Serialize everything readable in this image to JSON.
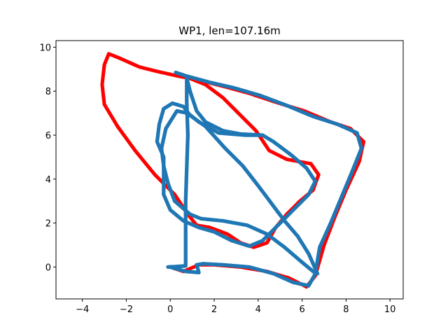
{
  "chart_data": {
    "type": "scatter",
    "title": "WP1, len=107.16m",
    "xlabel": "",
    "ylabel": "",
    "xlim": [
      -5.2,
      10.6
    ],
    "ylim": [
      -1.45,
      10.3
    ],
    "xticks": [
      -4,
      -2,
      0,
      2,
      4,
      6,
      8,
      10
    ],
    "yticks": [
      0,
      2,
      4,
      6,
      8,
      10
    ],
    "grid": false,
    "series": [
      {
        "color": "#ff0000",
        "marker_size": 2.6,
        "points": [
          [
            0.6,
            8.7
          ],
          [
            1.6,
            8.3
          ],
          [
            2.4,
            7.7
          ],
          [
            3.2,
            6.9
          ],
          [
            3.9,
            6.2
          ],
          [
            4.5,
            5.3
          ],
          [
            5.3,
            4.9
          ],
          [
            6.4,
            4.7
          ],
          [
            6.75,
            4.2
          ],
          [
            6.5,
            3.5
          ],
          [
            5.9,
            3.0
          ],
          [
            5.3,
            2.4
          ],
          [
            4.8,
            1.8
          ],
          [
            4.4,
            1.1
          ],
          [
            3.8,
            0.9
          ],
          [
            3.2,
            1.1
          ],
          [
            2.6,
            1.5
          ],
          [
            1.8,
            1.8
          ],
          [
            1.2,
            1.9
          ],
          [
            0.8,
            2.4
          ],
          [
            0.2,
            3.3
          ],
          [
            -0.7,
            4.2
          ],
          [
            -1.6,
            5.3
          ],
          [
            -2.4,
            6.4
          ],
          [
            -3.0,
            7.4
          ],
          [
            -3.1,
            8.3
          ],
          [
            -3.0,
            9.2
          ],
          [
            -2.8,
            9.7
          ],
          [
            -2.3,
            9.5
          ],
          [
            -1.4,
            9.1
          ],
          [
            -0.6,
            8.9
          ],
          [
            0.3,
            8.7
          ],
          [
            1.3,
            8.5
          ],
          [
            2.5,
            8.2
          ],
          [
            3.6,
            7.9
          ],
          [
            4.8,
            7.5
          ],
          [
            6.1,
            7.1
          ],
          [
            7.3,
            6.6
          ],
          [
            8.2,
            6.3
          ],
          [
            8.8,
            5.7
          ],
          [
            8.6,
            4.8
          ],
          [
            8.0,
            3.5
          ],
          [
            7.5,
            2.3
          ],
          [
            7.0,
            1.0
          ],
          [
            6.6,
            -0.4
          ],
          [
            6.2,
            -0.9
          ],
          [
            5.4,
            -0.5
          ],
          [
            4.4,
            -0.2
          ],
          [
            3.2,
            0.0
          ],
          [
            2.0,
            0.1
          ],
          [
            1.3,
            0.1
          ],
          [
            0.6,
            -0.2
          ],
          [
            0.0,
            0.0
          ],
          [
            -0.1,
            0.0
          ]
        ]
      },
      {
        "color": "#1f77b4",
        "marker_size": 2.7,
        "points": [
          [
            0.25,
            8.85
          ],
          [
            0.7,
            8.7
          ],
          [
            1.8,
            8.4
          ],
          [
            2.9,
            8.15
          ],
          [
            4.1,
            7.8
          ],
          [
            5.3,
            7.35
          ],
          [
            6.5,
            6.85
          ],
          [
            7.6,
            6.5
          ],
          [
            8.5,
            6.1
          ],
          [
            8.7,
            5.4
          ],
          [
            8.3,
            4.4
          ],
          [
            7.8,
            3.2
          ],
          [
            7.3,
            2.0
          ],
          [
            6.8,
            0.9
          ],
          [
            6.6,
            -0.3
          ],
          [
            6.3,
            -0.85
          ],
          [
            5.6,
            -0.7
          ],
          [
            4.7,
            -0.3
          ],
          [
            3.6,
            0.0
          ],
          [
            2.4,
            0.1
          ],
          [
            1.5,
            0.15
          ],
          [
            1.2,
            0.1
          ],
          [
            1.3,
            -0.25
          ],
          [
            0.7,
            -0.2
          ],
          [
            0.0,
            0.0
          ],
          [
            -0.1,
            0.0
          ],
          [
            0.7,
            0.05
          ],
          [
            0.7,
            1.5
          ],
          [
            0.7,
            3.0
          ],
          [
            0.75,
            4.5
          ],
          [
            0.8,
            6.0
          ],
          [
            0.75,
            7.5
          ],
          [
            0.75,
            8.6
          ],
          [
            0.9,
            8.0
          ],
          [
            1.2,
            7.1
          ],
          [
            1.6,
            6.6
          ],
          [
            2.4,
            6.2
          ],
          [
            3.2,
            6.05
          ],
          [
            4.2,
            6.0
          ],
          [
            4.7,
            5.7
          ],
          [
            5.5,
            5.1
          ],
          [
            6.2,
            4.5
          ],
          [
            6.6,
            3.9
          ],
          [
            6.3,
            3.3
          ],
          [
            5.6,
            2.6
          ],
          [
            4.9,
            1.9
          ],
          [
            4.2,
            1.2
          ],
          [
            3.6,
            0.95
          ],
          [
            2.8,
            1.2
          ],
          [
            2.0,
            1.6
          ],
          [
            1.3,
            1.8
          ],
          [
            0.6,
            2.1
          ],
          [
            0.0,
            2.6
          ],
          [
            -0.3,
            3.3
          ],
          [
            -0.3,
            4.2
          ],
          [
            -0.3,
            5.0
          ],
          [
            -0.6,
            5.7
          ],
          [
            -0.5,
            6.5
          ],
          [
            -0.3,
            7.2
          ],
          [
            0.1,
            7.45
          ],
          [
            0.6,
            7.3
          ],
          [
            0.9,
            6.9
          ],
          [
            1.6,
            6.4
          ],
          [
            2.5,
            5.4
          ],
          [
            3.3,
            4.6
          ],
          [
            4.0,
            3.7
          ],
          [
            4.6,
            2.9
          ],
          [
            5.2,
            2.1
          ],
          [
            5.8,
            1.4
          ],
          [
            6.3,
            0.6
          ],
          [
            6.7,
            -0.3
          ],
          [
            6.5,
            -0.2
          ],
          [
            5.9,
            0.3
          ],
          [
            5.2,
            0.9
          ],
          [
            4.4,
            1.5
          ],
          [
            3.5,
            1.9
          ],
          [
            2.4,
            2.1
          ],
          [
            1.4,
            2.2
          ],
          [
            0.9,
            2.4
          ],
          [
            0.2,
            3.0
          ],
          [
            -0.1,
            3.8
          ],
          [
            -0.3,
            4.6
          ],
          [
            -0.4,
            5.4
          ],
          [
            -0.2,
            6.3
          ],
          [
            0.3,
            7.1
          ],
          [
            0.8,
            7.0
          ],
          [
            1.3,
            6.6
          ],
          [
            2.2,
            6.1
          ],
          [
            3.4,
            6.0
          ],
          [
            4.1,
            6.0
          ]
        ]
      }
    ]
  }
}
